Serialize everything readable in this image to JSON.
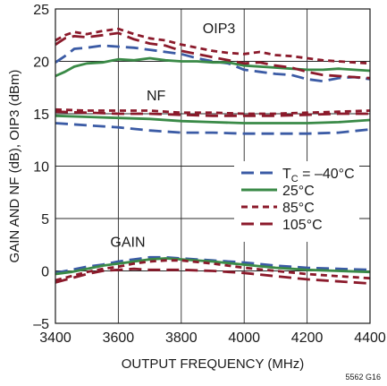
{
  "chart_data": {
    "type": "line",
    "xlabel": "OUTPUT FREQUENCY (MHz)",
    "ylabel": "GAIN AND NF (dB), OIP3 (dBm)",
    "xlim": [
      3400,
      4400
    ],
    "ylim": [
      -5,
      25
    ],
    "x_ticks": [
      "3400",
      "3600",
      "3800",
      "4000",
      "4200",
      "4400"
    ],
    "y_ticks": [
      "–5",
      "0",
      "5",
      "10",
      "15",
      "20",
      "25"
    ],
    "grid": true,
    "legend_position": "center-right",
    "figure_id": "5562 G16",
    "annotations": [
      {
        "text": "OIP3",
        "x": 3920,
        "y": 22.7
      },
      {
        "text": "NF",
        "x": 3720,
        "y": 16.3
      },
      {
        "text": "GAIN",
        "x": 3630,
        "y": 2.3
      }
    ],
    "legend": [
      {
        "label_main": "T",
        "label_sub": "C",
        "label_rest": " = –40°C",
        "color": "#3b5ba5",
        "dash": "long"
      },
      {
        "label_main": "25°C",
        "label_sub": "",
        "label_rest": "",
        "color": "#3a8a47",
        "dash": "solid"
      },
      {
        "label_main": "85°C",
        "label_sub": "",
        "label_rest": "",
        "color": "#8b1a2b",
        "dash": "short"
      },
      {
        "label_main": "105°C",
        "label_sub": "",
        "label_rest": "",
        "color": "#8b1a2b",
        "dash": "long"
      }
    ],
    "series": [
      {
        "group": "OIP3",
        "temp": "-40",
        "color": "#3b5ba5",
        "dash": "long",
        "x": [
          3400,
          3430,
          3460,
          3500,
          3550,
          3600,
          3650,
          3700,
          3750,
          3800,
          3850,
          3900,
          3950,
          4000,
          4050,
          4100,
          4150,
          4200,
          4250,
          4300,
          4350,
          4400
        ],
        "y": [
          19.9,
          20.5,
          21.2,
          21.3,
          21.5,
          21.4,
          21.3,
          21.1,
          20.9,
          20.7,
          20.3,
          20.0,
          19.8,
          19.2,
          19.0,
          18.8,
          18.7,
          18.3,
          18.1,
          18.4,
          18.5,
          18.3
        ]
      },
      {
        "group": "OIP3",
        "temp": "25",
        "color": "#3a8a47",
        "dash": "solid",
        "x": [
          3400,
          3430,
          3460,
          3500,
          3550,
          3600,
          3650,
          3700,
          3750,
          3800,
          3850,
          3900,
          3950,
          4000,
          4050,
          4100,
          4150,
          4200,
          4250,
          4300,
          4350,
          4400
        ],
        "y": [
          18.6,
          19.0,
          19.5,
          19.8,
          19.9,
          20.2,
          20.1,
          20.3,
          20.1,
          20.0,
          20.0,
          19.9,
          19.9,
          19.6,
          19.5,
          19.4,
          19.3,
          19.2,
          19.2,
          19.3,
          19.2,
          19.1
        ]
      },
      {
        "group": "OIP3",
        "temp": "85",
        "color": "#8b1a2b",
        "dash": "short",
        "x": [
          3400,
          3430,
          3460,
          3500,
          3550,
          3600,
          3650,
          3700,
          3750,
          3800,
          3850,
          3900,
          3950,
          4000,
          4050,
          4100,
          4150,
          4200,
          4250,
          4300,
          4350,
          4400
        ],
        "y": [
          22.0,
          22.5,
          22.8,
          22.6,
          22.9,
          23.1,
          22.6,
          22.2,
          22.0,
          21.6,
          21.3,
          21.0,
          20.8,
          20.7,
          20.9,
          20.6,
          20.5,
          20.3,
          20.1,
          20.0,
          19.9,
          19.8
        ]
      },
      {
        "group": "OIP3",
        "temp": "105",
        "color": "#8b1a2b",
        "dash": "long",
        "x": [
          3400,
          3430,
          3460,
          3500,
          3550,
          3600,
          3650,
          3700,
          3750,
          3800,
          3850,
          3900,
          3950,
          4000,
          4050,
          4100,
          4150,
          4200,
          4250,
          4300,
          4350,
          4400
        ],
        "y": [
          21.6,
          22.2,
          22.4,
          22.3,
          22.5,
          22.7,
          22.1,
          21.7,
          21.5,
          21.0,
          20.7,
          20.4,
          20.1,
          19.8,
          19.9,
          19.6,
          19.4,
          19.0,
          18.7,
          18.6,
          18.5,
          18.4
        ]
      },
      {
        "group": "NF",
        "temp": "-40",
        "color": "#3b5ba5",
        "dash": "long",
        "x": [
          3400,
          3500,
          3600,
          3700,
          3800,
          3900,
          4000,
          4100,
          4200,
          4300,
          4400
        ],
        "y": [
          14.1,
          13.9,
          13.7,
          13.4,
          13.2,
          13.2,
          13.1,
          13.1,
          13.1,
          13.2,
          13.5
        ]
      },
      {
        "group": "NF",
        "temp": "25",
        "color": "#3a8a47",
        "dash": "solid",
        "x": [
          3400,
          3500,
          3600,
          3700,
          3800,
          3900,
          4000,
          4100,
          4200,
          4300,
          4400
        ],
        "y": [
          14.8,
          14.7,
          14.6,
          14.5,
          14.3,
          14.2,
          14.1,
          14.1,
          14.1,
          14.2,
          14.4
        ]
      },
      {
        "group": "NF",
        "temp": "85",
        "color": "#8b1a2b",
        "dash": "short",
        "x": [
          3400,
          3500,
          3600,
          3700,
          3800,
          3900,
          4000,
          4100,
          4200,
          4300,
          4400
        ],
        "y": [
          15.4,
          15.3,
          15.3,
          15.3,
          15.1,
          15.1,
          15.0,
          15.0,
          15.1,
          15.2,
          15.3
        ]
      },
      {
        "group": "NF",
        "temp": "105",
        "color": "#8b1a2b",
        "dash": "long",
        "x": [
          3400,
          3500,
          3600,
          3700,
          3800,
          3900,
          4000,
          4100,
          4200,
          4300,
          4400
        ],
        "y": [
          15.2,
          15.1,
          15.0,
          15.0,
          14.9,
          14.8,
          14.8,
          14.8,
          14.9,
          15.0,
          15.0
        ]
      },
      {
        "group": "GAIN",
        "temp": "-40",
        "color": "#3b5ba5",
        "dash": "long",
        "x": [
          3400,
          3450,
          3500,
          3550,
          3600,
          3650,
          3700,
          3750,
          3800,
          3900,
          4000,
          4100,
          4200,
          4300,
          4400
        ],
        "y": [
          -0.2,
          0.1,
          0.4,
          0.6,
          0.9,
          1.1,
          1.3,
          1.3,
          1.2,
          1.0,
          0.8,
          0.5,
          0.3,
          0.2,
          0.1
        ]
      },
      {
        "group": "GAIN",
        "temp": "25",
        "color": "#3a8a47",
        "dash": "solid",
        "x": [
          3400,
          3450,
          3500,
          3550,
          3600,
          3650,
          3700,
          3750,
          3800,
          3900,
          4000,
          4100,
          4200,
          4300,
          4400
        ],
        "y": [
          -0.3,
          -0.1,
          0.2,
          0.5,
          0.7,
          0.9,
          1.1,
          1.2,
          1.1,
          0.9,
          0.6,
          0.3,
          0.1,
          0.0,
          -0.1
        ]
      },
      {
        "group": "GAIN",
        "temp": "85",
        "color": "#8b1a2b",
        "dash": "short",
        "x": [
          3400,
          3450,
          3500,
          3550,
          3600,
          3650,
          3700,
          3750,
          3800,
          3900,
          4000,
          4100,
          4200,
          4300,
          4400
        ],
        "y": [
          -0.9,
          -0.5,
          -0.1,
          0.2,
          0.4,
          0.7,
          0.9,
          1.0,
          1.0,
          0.7,
          0.3,
          0.0,
          -0.3,
          -0.5,
          -0.7
        ]
      },
      {
        "group": "GAIN",
        "temp": "105",
        "color": "#8b1a2b",
        "dash": "long",
        "x": [
          3400,
          3450,
          3500,
          3550,
          3600,
          3650,
          3700,
          3750,
          3800,
          3900,
          4000,
          4100,
          4200,
          4300,
          4400
        ],
        "y": [
          -1.1,
          -0.7,
          -0.3,
          0.0,
          0.1,
          0.2,
          0.1,
          0.1,
          0.1,
          0.0,
          -0.2,
          -0.5,
          -0.8,
          -1.0,
          -1.2
        ]
      }
    ]
  }
}
